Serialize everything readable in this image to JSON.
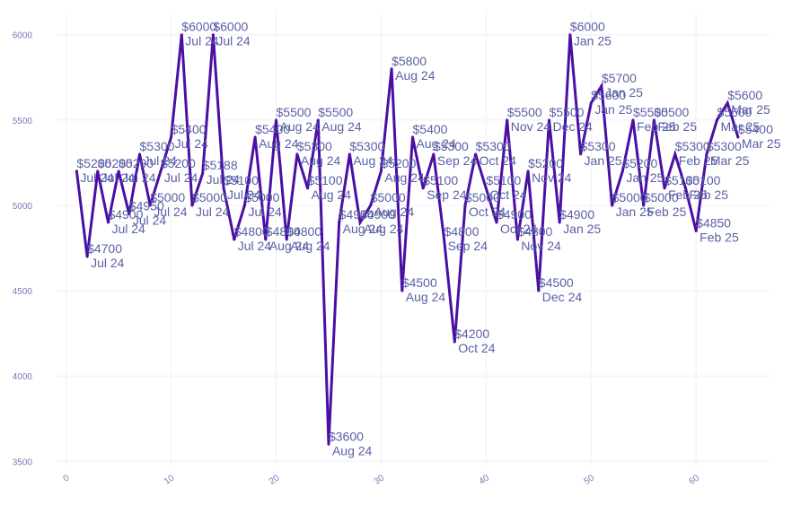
{
  "chart_data": {
    "type": "line",
    "title": "",
    "xlabel": "",
    "ylabel": "",
    "xlim": [
      -1,
      67
    ],
    "ylim": [
      3470,
      6130
    ],
    "x_ticks": [
      0,
      10,
      20,
      30,
      40,
      50,
      60
    ],
    "y_ticks": [
      3500,
      4000,
      4500,
      5000,
      5500,
      6000
    ],
    "x_tick_labels": [
      "0",
      "10",
      "20",
      "30",
      "40",
      "50",
      "60"
    ],
    "y_tick_labels": [
      "3500",
      "4000",
      "4500",
      "5000",
      "5500",
      "6000"
    ],
    "grid": true,
    "colors": {
      "line": "#4a0fa5",
      "label": "#5b60a6",
      "tick": "#7d79b8",
      "grid": "#f0eff7"
    },
    "series": [
      {
        "name": "Value",
        "points": [
          {
            "x": 1,
            "y": 5200,
            "value": "$5200",
            "date": "Jul 24"
          },
          {
            "x": 2,
            "y": 4700,
            "value": "$4700",
            "date": "Jul 24"
          },
          {
            "x": 3,
            "y": 5200,
            "value": "$5200",
            "date": "Jul 24"
          },
          {
            "x": 4,
            "y": 4900,
            "value": "$4900",
            "date": "Jul 24"
          },
          {
            "x": 5,
            "y": 5200,
            "value": "$5200",
            "date": "Jul 24"
          },
          {
            "x": 6,
            "y": 4950,
            "value": "$4950",
            "date": "Jul 24"
          },
          {
            "x": 7,
            "y": 5300,
            "value": "$5300",
            "date": "Jul 24"
          },
          {
            "x": 8,
            "y": 5000,
            "value": "$5000",
            "date": "Jul 24"
          },
          {
            "x": 9,
            "y": 5200,
            "value": "$5200",
            "date": "Jul 24"
          },
          {
            "x": 10,
            "y": 5400,
            "value": "$5400",
            "date": "Jul 24"
          },
          {
            "x": 11,
            "y": 6000,
            "value": "$6000",
            "date": "Jul 24"
          },
          {
            "x": 12,
            "y": 5000,
            "value": "$5000",
            "date": "Jul 24"
          },
          {
            "x": 13,
            "y": 5188,
            "value": "$5188",
            "date": "Jul 24"
          },
          {
            "x": 14,
            "y": 6000,
            "value": "$6000",
            "date": "Jul 24"
          },
          {
            "x": 15,
            "y": 5100,
            "value": "$5100",
            "date": "Jul 24"
          },
          {
            "x": 16,
            "y": 4800,
            "value": "$4800",
            "date": "Jul 24"
          },
          {
            "x": 17,
            "y": 5000,
            "value": "$5000",
            "date": "Jul 24"
          },
          {
            "x": 18,
            "y": 5400,
            "value": "$5400",
            "date": "Aug 24"
          },
          {
            "x": 19,
            "y": 4800,
            "value": "$4800",
            "date": "Aug 24"
          },
          {
            "x": 20,
            "y": 5500,
            "value": "$5500",
            "date": "Aug 24"
          },
          {
            "x": 21,
            "y": 4800,
            "value": "$4800",
            "date": "Aug 24"
          },
          {
            "x": 22,
            "y": 5300,
            "value": "$5300",
            "date": "Aug 24"
          },
          {
            "x": 23,
            "y": 5100,
            "value": "$5100",
            "date": "Aug 24"
          },
          {
            "x": 24,
            "y": 5500,
            "value": "$5500",
            "date": "Aug 24"
          },
          {
            "x": 25,
            "y": 3600,
            "value": "$3600",
            "date": "Aug 24"
          },
          {
            "x": 26,
            "y": 4900,
            "value": "$4900",
            "date": "Aug 24"
          },
          {
            "x": 27,
            "y": 5300,
            "value": "$5300",
            "date": "Aug 24"
          },
          {
            "x": 28,
            "y": 4900,
            "value": "$4900",
            "date": "Aug 24"
          },
          {
            "x": 29,
            "y": 5000,
            "value": "$5000",
            "date": "Aug 24"
          },
          {
            "x": 30,
            "y": 5200,
            "value": "$5200",
            "date": "Aug 24"
          },
          {
            "x": 31,
            "y": 5800,
            "value": "$5800",
            "date": "Aug 24"
          },
          {
            "x": 32,
            "y": 4500,
            "value": "$4500",
            "date": "Aug 24"
          },
          {
            "x": 33,
            "y": 5400,
            "value": "$5400",
            "date": "Aug 24"
          },
          {
            "x": 34,
            "y": 5100,
            "value": "$5100",
            "date": "Sep 24"
          },
          {
            "x": 35,
            "y": 5300,
            "value": "$5300",
            "date": "Sep 24"
          },
          {
            "x": 36,
            "y": 4800,
            "value": "$4800",
            "date": "Sep 24"
          },
          {
            "x": 37,
            "y": 4200,
            "value": "$4200",
            "date": "Oct 24"
          },
          {
            "x": 38,
            "y": 5000,
            "value": "$5000",
            "date": "Oct 24"
          },
          {
            "x": 39,
            "y": 5300,
            "value": "$5300",
            "date": "Oct 24"
          },
          {
            "x": 40,
            "y": 5100,
            "value": "$5100",
            "date": "Oct 24"
          },
          {
            "x": 41,
            "y": 4900,
            "value": "$4900",
            "date": "Oct 24"
          },
          {
            "x": 42,
            "y": 5500,
            "value": "$5500",
            "date": "Nov 24"
          },
          {
            "x": 43,
            "y": 4800,
            "value": "$4800",
            "date": "Nov 24"
          },
          {
            "x": 44,
            "y": 5200,
            "value": "$5200",
            "date": "Nov 24"
          },
          {
            "x": 45,
            "y": 4500,
            "value": "$4500",
            "date": "Dec 24"
          },
          {
            "x": 46,
            "y": 5500,
            "value": "$5500",
            "date": "Dec 24"
          },
          {
            "x": 47,
            "y": 4900,
            "value": "$4900",
            "date": "Jan 25"
          },
          {
            "x": 48,
            "y": 6000,
            "value": "$6000",
            "date": "Jan 25"
          },
          {
            "x": 49,
            "y": 5300,
            "value": "$5300",
            "date": "Jan 25"
          },
          {
            "x": 50,
            "y": 5600,
            "value": "$5600",
            "date": "Jan 25"
          },
          {
            "x": 51,
            "y": 5700,
            "value": "$5700",
            "date": "Jan 25"
          },
          {
            "x": 52,
            "y": 5000,
            "value": "$5000",
            "date": "Jan 25"
          },
          {
            "x": 53,
            "y": 5200,
            "value": "$5200",
            "date": "Jan 25"
          },
          {
            "x": 54,
            "y": 5500,
            "value": "$5500",
            "date": "Feb 25"
          },
          {
            "x": 55,
            "y": 5000,
            "value": "$5000",
            "date": "Feb 25"
          },
          {
            "x": 56,
            "y": 5500,
            "value": "$5500",
            "date": "Feb 25"
          },
          {
            "x": 57,
            "y": 5100,
            "value": "$5100",
            "date": "Feb 25"
          },
          {
            "x": 58,
            "y": 5300,
            "value": "$5300",
            "date": "Feb 25"
          },
          {
            "x": 59,
            "y": 5100,
            "value": "$5100",
            "date": "Feb 25"
          },
          {
            "x": 60,
            "y": 4850,
            "value": "$4850",
            "date": "Feb 25"
          },
          {
            "x": 61,
            "y": 5300,
            "value": "$5300",
            "date": "Mar 25"
          },
          {
            "x": 62,
            "y": 5500,
            "value": "$5500",
            "date": "Mar 25"
          },
          {
            "x": 63,
            "y": 5600,
            "value": "$5600",
            "date": "Mar 25"
          },
          {
            "x": 64,
            "y": 5400,
            "value": "$5400",
            "date": "Mar 25"
          }
        ]
      }
    ]
  }
}
